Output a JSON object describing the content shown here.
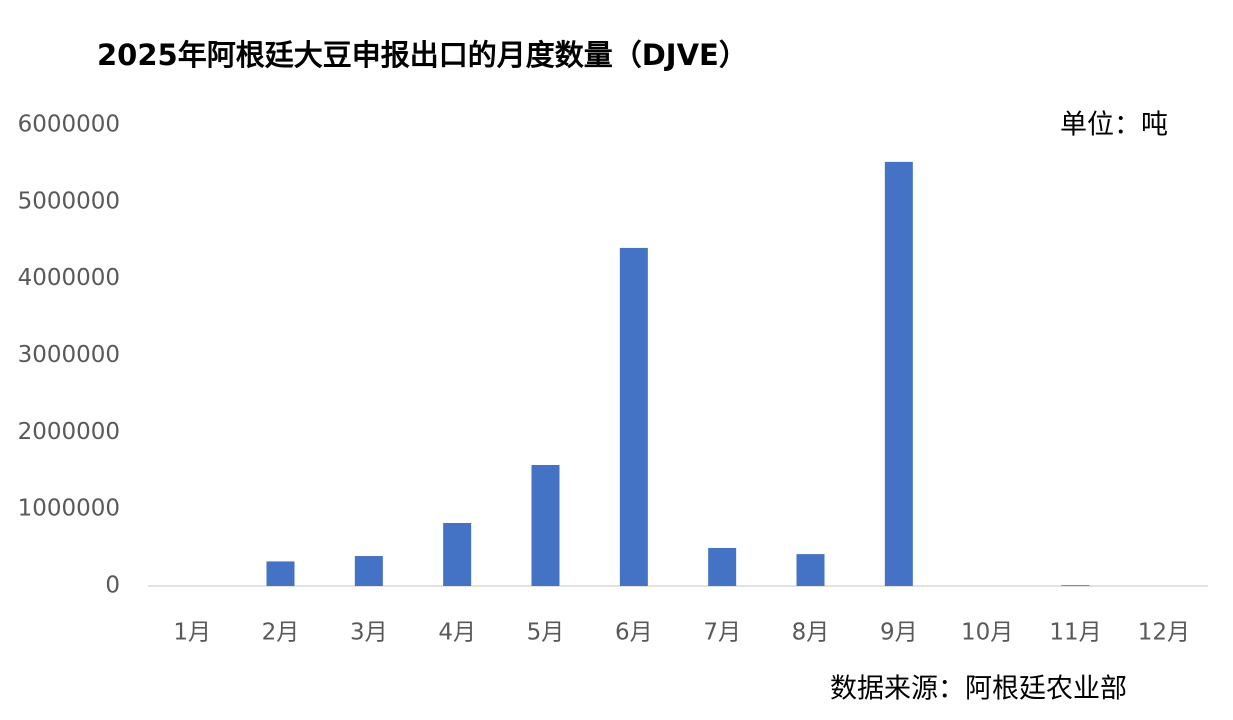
{
  "chart_data": {
    "type": "bar",
    "title": "2025年阿根廷大豆申报出口的月度数量（DJVE）",
    "unit_label": "单位：吨",
    "source": "数据来源：阿根廷农业部",
    "categories": [
      "1月",
      "2月",
      "3月",
      "4月",
      "5月",
      "6月",
      "7月",
      "8月",
      "9月",
      "10月",
      "11月",
      "12月"
    ],
    "values": [
      0,
      320000,
      390000,
      820000,
      1575000,
      4400000,
      495000,
      415000,
      5520000,
      0,
      10000,
      0
    ],
    "color": "#4472c4",
    "ylim": [
      0,
      6000000
    ],
    "yticks": [
      0,
      1000000,
      2000000,
      3000000,
      4000000,
      5000000,
      6000000
    ],
    "grid": false
  }
}
